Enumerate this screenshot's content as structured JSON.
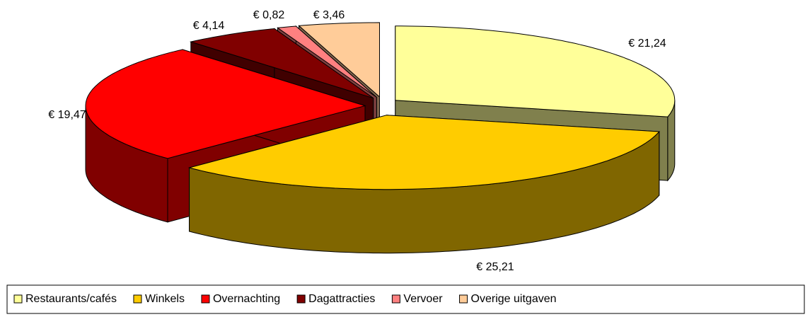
{
  "chart_data": {
    "type": "pie3d",
    "categories": [
      "Restaurants/cafés",
      "Winkels",
      "Overnachting",
      "Dagattracties",
      "Vervoer",
      "Overige uitgaven"
    ],
    "values": [
      21.24,
      25.21,
      19.47,
      4.14,
      0.82,
      3.46
    ],
    "value_labels": [
      "€ 21,24",
      "€ 25,21",
      "€ 19,47",
      "€ 4,14",
      "€ 0,82",
      "€ 3,46"
    ],
    "colors": [
      "#ffff99",
      "#ffcc00",
      "#ff0000",
      "#800000",
      "#ff8080",
      "#ffcc99"
    ],
    "legend": "bottom"
  }
}
